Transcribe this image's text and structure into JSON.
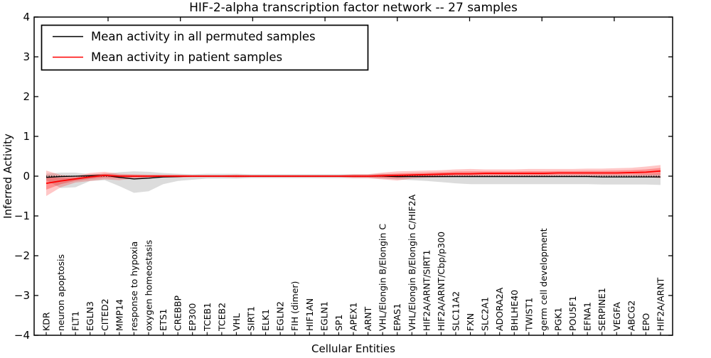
{
  "chart_data": {
    "type": "line",
    "title": "HIF-2-alpha transcription factor network -- 27 samples",
    "xlabel": "Cellular Entities",
    "ylabel": "Inferred Activity",
    "ylim": [
      -4,
      4
    ],
    "yticks": [
      4,
      3,
      2,
      1,
      0,
      -1,
      -2,
      -3,
      -4
    ],
    "ytick_labels": [
      "4",
      "3",
      "2",
      "1",
      "0",
      "−1",
      "−2",
      "−3",
      "−4"
    ],
    "grid": false,
    "legend": {
      "position": "upper left",
      "entries": [
        {
          "label": "Mean activity in all permuted samples",
          "color": "#000000"
        },
        {
          "label": "Mean activity in patient samples",
          "color": "#ff0000"
        }
      ]
    },
    "zero_line": {
      "y": 0,
      "style": "dotted",
      "color": "#000000"
    },
    "categories": [
      "KDR",
      "neuron apoptosis",
      "FLT1",
      "EGLN3",
      "CITED2",
      "MMP14",
      "response to hypoxia",
      "oxygen homeostasis",
      "ETS1",
      "CREBBP",
      "EP300",
      "TCEB1",
      "TCEB2",
      "VHL",
      "SIRT1",
      "ELK1",
      "EGLN2",
      "FIH (dimer)",
      "HIF1AN",
      "EGLN1",
      "SP1",
      "APEX1",
      "ARNT",
      "VHL/Elongin B/Elongin C",
      "EPAS1",
      "VHL/Elongin B/Elongin C/HIF2A",
      "HIF2A/ARNT/SIRT1",
      "HIF2A/ARNT/Cbp/p300",
      "SLC11A2",
      "FXN",
      "SLC2A1",
      "ADORA2A",
      "BHLHE40",
      "TWIST1",
      "germ cell development",
      "PGK1",
      "POU5F1",
      "EFNA1",
      "SERPINE1",
      "VEGFA",
      "ABCG2",
      "EPO",
      "HIF2A/ARNT"
    ],
    "series": [
      {
        "name": "Mean activity in all permuted samples",
        "color": "#000000",
        "band_color": "#808080",
        "values": [
          -0.03,
          -0.01,
          0.0,
          0.01,
          0.02,
          -0.03,
          -0.07,
          -0.05,
          -0.02,
          -0.01,
          0,
          0,
          0,
          0,
          0,
          0,
          0,
          0,
          0,
          0,
          0,
          0,
          0,
          0,
          -0.01,
          -0.01,
          -0.01,
          -0.01,
          -0.01,
          -0.01,
          -0.01,
          -0.01,
          -0.01,
          -0.01,
          -0.01,
          -0.01,
          -0.01,
          -0.01,
          -0.02,
          -0.02,
          -0.02,
          -0.02,
          -0.02
        ],
        "band_hi": [
          0.06,
          0.09,
          0.09,
          0.05,
          0.06,
          0.1,
          0.12,
          0.11,
          0.08,
          0.06,
          0.05,
          0.06,
          0.06,
          0.06,
          0.05,
          0.05,
          0.05,
          0.05,
          0.05,
          0.05,
          0.05,
          0.05,
          0.05,
          0.06,
          0.05,
          0.04,
          0.04,
          0.04,
          0.04,
          0.04,
          0.04,
          0.04,
          0.04,
          0.04,
          0.04,
          0.04,
          0.04,
          0.04,
          0.04,
          0.04,
          0.04,
          0.05,
          0.06
        ],
        "band_lo": [
          -0.1,
          -0.3,
          -0.28,
          -0.12,
          -0.1,
          -0.25,
          -0.42,
          -0.38,
          -0.2,
          -0.12,
          -0.09,
          -0.06,
          -0.06,
          -0.06,
          -0.05,
          -0.05,
          -0.05,
          -0.05,
          -0.05,
          -0.05,
          -0.05,
          -0.05,
          -0.05,
          -0.06,
          -0.08,
          -0.1,
          -0.12,
          -0.15,
          -0.18,
          -0.2,
          -0.2,
          -0.2,
          -0.2,
          -0.2,
          -0.2,
          -0.2,
          -0.2,
          -0.2,
          -0.21,
          -0.21,
          -0.21,
          -0.21,
          -0.22
        ]
      },
      {
        "name": "Mean activity in patient samples",
        "color": "#ff0000",
        "band_color": "#ff0000",
        "values": [
          -0.18,
          -0.12,
          -0.07,
          -0.02,
          0.02,
          0.0,
          0.0,
          0.0,
          0.0,
          0,
          0,
          0,
          0,
          0,
          0,
          0,
          0,
          0,
          0,
          0,
          0,
          0,
          0,
          0.01,
          0.02,
          0.03,
          0.04,
          0.05,
          0.06,
          0.06,
          0.07,
          0.07,
          0.07,
          0.07,
          0.07,
          0.08,
          0.08,
          0.08,
          0.08,
          0.08,
          0.09,
          0.1,
          0.13
        ],
        "band_hi": [
          0.14,
          0.03,
          0.0,
          0.08,
          0.11,
          0.06,
          0.05,
          0.04,
          0.04,
          0.04,
          0.03,
          0.03,
          0.03,
          0.04,
          0.03,
          0.03,
          0.03,
          0.03,
          0.03,
          0.03,
          0.03,
          0.05,
          0.05,
          0.09,
          0.12,
          0.13,
          0.14,
          0.15,
          0.17,
          0.18,
          0.17,
          0.17,
          0.17,
          0.18,
          0.18,
          0.18,
          0.18,
          0.19,
          0.19,
          0.2,
          0.21,
          0.24,
          0.28
        ],
        "band_lo": [
          -0.5,
          -0.28,
          -0.16,
          -0.12,
          -0.08,
          -0.1,
          -0.06,
          -0.05,
          -0.04,
          -0.04,
          -0.03,
          -0.03,
          -0.03,
          -0.04,
          -0.03,
          -0.03,
          -0.03,
          -0.03,
          -0.03,
          -0.03,
          -0.03,
          -0.05,
          -0.05,
          -0.08,
          -0.11,
          -0.06,
          -0.04,
          -0.03,
          -0.02,
          -0.02,
          -0.01,
          -0.01,
          -0.01,
          -0.01,
          -0.01,
          0.0,
          0.0,
          0.0,
          0.0,
          0.0,
          0.0,
          -0.02,
          -0.05
        ]
      }
    ],
    "sample_count_in_title": 27
  }
}
